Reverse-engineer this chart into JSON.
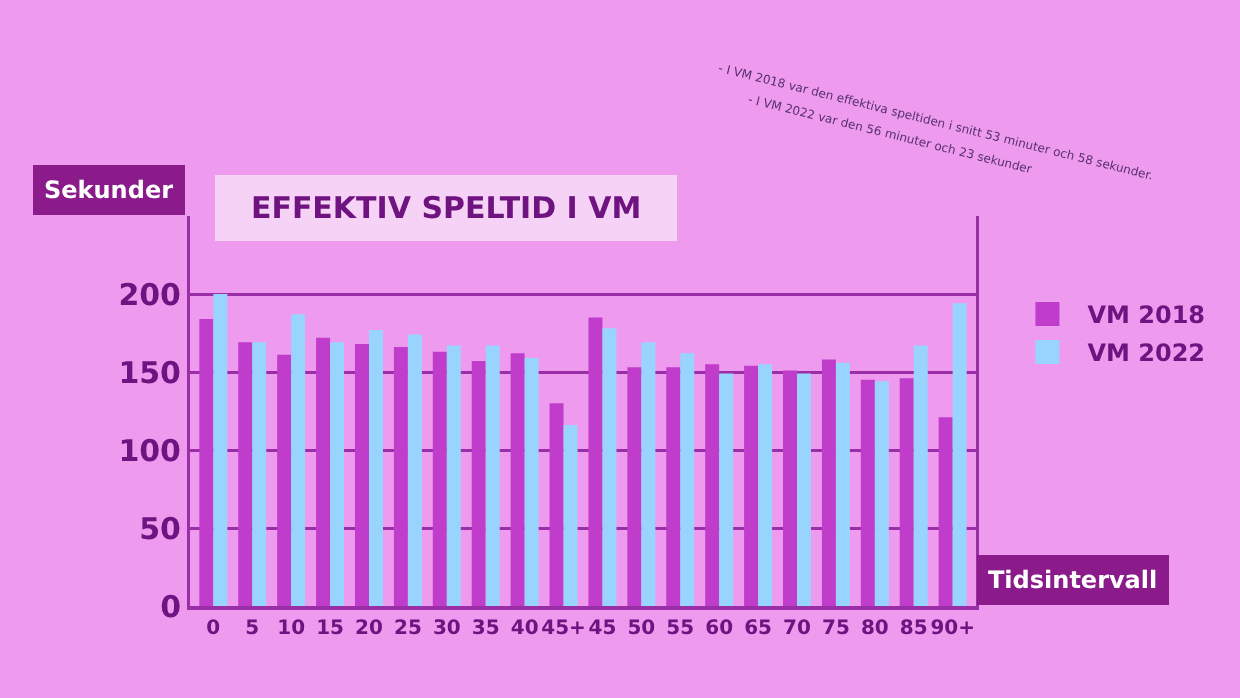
{
  "chart_data": {
    "type": "bar",
    "title": "EFFEKTIV SPELTID I VM",
    "xlabel": "Tidsintervall",
    "ylabel": "Sekunder",
    "annotations": [
      "- I VM 2018 var den effektiva speltiden i snitt 53 minuter och 58 sekunder.",
      "- I VM 2022 var den 56 minuter och 23 sekunder"
    ],
    "categories": [
      "0",
      "5",
      "10",
      "15",
      "20",
      "25",
      "30",
      "35",
      "40",
      "45+",
      "45",
      "50",
      "55",
      "60",
      "65",
      "70",
      "75",
      "80",
      "85",
      "90+"
    ],
    "series": [
      {
        "name": "VM 2018",
        "color": "#c03ccb",
        "values": [
          184,
          169,
          161,
          172,
          168,
          166,
          163,
          157,
          162,
          130,
          185,
          153,
          153,
          155,
          154,
          151,
          158,
          145,
          146,
          121
        ]
      },
      {
        "name": "VM 2022",
        "color": "#99d4ff",
        "values": [
          200,
          169,
          187,
          169,
          177,
          174,
          167,
          167,
          159,
          116,
          178,
          169,
          162,
          149,
          155,
          149,
          156,
          144,
          167,
          194
        ]
      }
    ],
    "ylim": [
      0,
      250
    ],
    "yticks": [
      0,
      50,
      100,
      150,
      200
    ],
    "grid": "y",
    "legend": "right"
  }
}
